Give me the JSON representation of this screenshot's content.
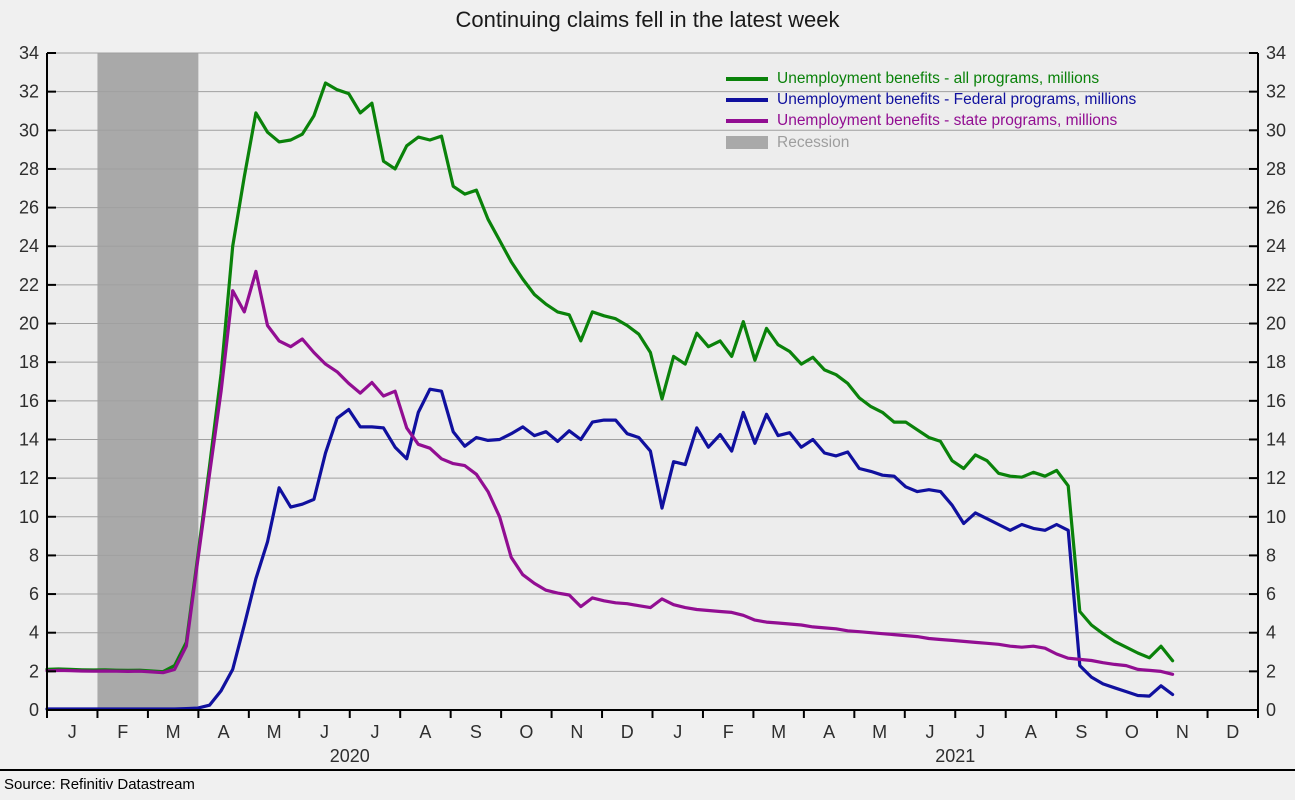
{
  "page": {
    "title": "Continuing claims fell in the latest week",
    "source": "Source: Refinitiv Datastream"
  },
  "chart_data": {
    "type": "line",
    "title": "Continuing claims fell in the latest week",
    "grid": true,
    "legend_position": "top-right",
    "y_axis": {
      "min": 0,
      "max": 34,
      "step": 2,
      "sides": "both",
      "tick_labels": [
        "0",
        "2",
        "4",
        "6",
        "8",
        "10",
        "12",
        "14",
        "16",
        "18",
        "20",
        "22",
        "24",
        "26",
        "28",
        "30",
        "32",
        "34"
      ]
    },
    "x_axis": {
      "years": [
        {
          "label": "2020",
          "months": [
            "J",
            "F",
            "M",
            "A",
            "M",
            "J",
            "J",
            "A",
            "S",
            "O",
            "N",
            "D"
          ]
        },
        {
          "label": "2021",
          "months": [
            "J",
            "F",
            "M",
            "A",
            "M",
            "J",
            "J",
            "A",
            "S",
            "O",
            "N",
            "D"
          ]
        }
      ]
    },
    "recession_band": {
      "label": "Recession",
      "color": "#a9a9a9",
      "label_color": "#9e9e9e",
      "start_month_index": 1,
      "end_month_index": 3
    },
    "series": [
      {
        "name": "Unemployment benefits - all programs, millions",
        "color": "#0a820a",
        "values": [
          2.1,
          2.12,
          2.1,
          2.08,
          2.07,
          2.08,
          2.06,
          2.05,
          2.06,
          2.02,
          1.98,
          2.3,
          3.5,
          8.0,
          12.6,
          17.4,
          24.0,
          27.6,
          30.9,
          29.9,
          29.4,
          29.5,
          29.8,
          30.75,
          32.45,
          32.1,
          31.9,
          30.9,
          31.4,
          28.4,
          28.0,
          29.2,
          29.65,
          29.5,
          29.7,
          27.1,
          26.7,
          26.9,
          25.4,
          24.3,
          23.2,
          22.3,
          21.5,
          21.0,
          20.6,
          20.45,
          19.1,
          20.6,
          20.4,
          20.25,
          19.9,
          19.45,
          18.5,
          16.1,
          18.3,
          17.9,
          19.5,
          18.8,
          19.1,
          18.3,
          20.1,
          18.1,
          19.75,
          18.9,
          18.55,
          17.9,
          18.25,
          17.6,
          17.35,
          16.9,
          16.15,
          15.7,
          15.4,
          14.9,
          14.9,
          14.5,
          14.1,
          13.9,
          12.9,
          12.5,
          13.2,
          12.9,
          12.25,
          12.1,
          12.05,
          12.3,
          12.1,
          12.4,
          11.6,
          5.1,
          4.4,
          3.95,
          3.55,
          3.25,
          2.95,
          2.7,
          3.3,
          2.55
        ]
      },
      {
        "name": "Unemployment benefits - Federal programs, millions",
        "color": "#10109e",
        "values": [
          0.05,
          0.05,
          0.05,
          0.05,
          0.05,
          0.05,
          0.05,
          0.05,
          0.05,
          0.05,
          0.05,
          0.05,
          0.07,
          0.1,
          0.25,
          1.0,
          2.1,
          4.4,
          6.8,
          8.7,
          11.5,
          10.5,
          10.65,
          10.9,
          13.3,
          15.1,
          15.55,
          14.65,
          14.65,
          14.6,
          13.6,
          13.0,
          15.4,
          16.6,
          16.5,
          14.4,
          13.65,
          14.1,
          13.95,
          14.0,
          14.3,
          14.65,
          14.2,
          14.4,
          13.9,
          14.45,
          14.0,
          14.9,
          15.0,
          15.0,
          14.3,
          14.1,
          13.4,
          10.45,
          12.85,
          12.7,
          14.6,
          13.6,
          14.25,
          13.4,
          15.4,
          13.8,
          15.3,
          14.2,
          14.35,
          13.6,
          14.0,
          13.3,
          13.15,
          13.35,
          12.5,
          12.35,
          12.15,
          12.1,
          11.55,
          11.3,
          11.4,
          11.3,
          10.6,
          9.65,
          10.2,
          9.9,
          9.6,
          9.3,
          9.6,
          9.4,
          9.3,
          9.6,
          9.3,
          2.3,
          1.7,
          1.35,
          1.15,
          0.95,
          0.75,
          0.72,
          1.25,
          0.8
        ]
      },
      {
        "name": "Unemployment benefits - state programs, millions",
        "color": "#920e92",
        "values": [
          2.03,
          2.05,
          2.04,
          2.02,
          2.01,
          2.02,
          2.01,
          2.0,
          2.01,
          1.97,
          1.93,
          2.1,
          3.3,
          7.8,
          12.2,
          16.5,
          21.7,
          20.6,
          22.7,
          19.9,
          19.1,
          18.8,
          19.2,
          18.5,
          17.9,
          17.5,
          16.9,
          16.4,
          16.95,
          16.25,
          16.5,
          14.6,
          13.75,
          13.55,
          13.0,
          12.75,
          12.65,
          12.2,
          11.3,
          10.0,
          7.9,
          7.0,
          6.55,
          6.2,
          6.05,
          5.95,
          5.35,
          5.8,
          5.65,
          5.55,
          5.5,
          5.4,
          5.3,
          5.75,
          5.45,
          5.3,
          5.2,
          5.15,
          5.1,
          5.05,
          4.9,
          4.65,
          4.55,
          4.5,
          4.45,
          4.4,
          4.3,
          4.25,
          4.2,
          4.1,
          4.05,
          4.0,
          3.95,
          3.9,
          3.85,
          3.8,
          3.7,
          3.65,
          3.6,
          3.55,
          3.5,
          3.45,
          3.4,
          3.3,
          3.25,
          3.3,
          3.2,
          2.9,
          2.68,
          2.62,
          2.56,
          2.45,
          2.36,
          2.3,
          2.1,
          2.05,
          2.0,
          1.85
        ]
      }
    ]
  }
}
